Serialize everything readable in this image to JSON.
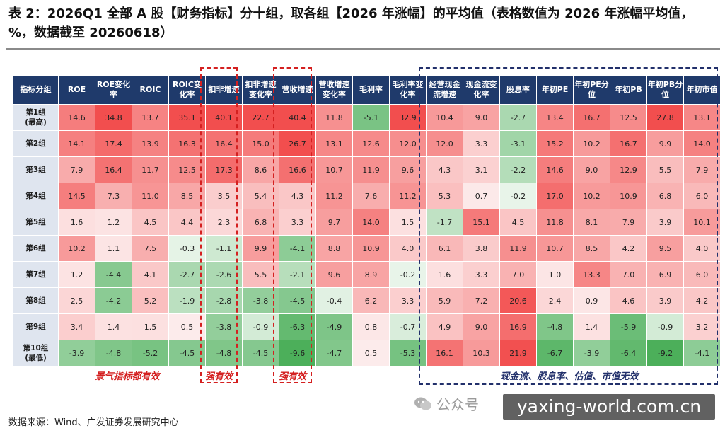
{
  "title": "表 2：2026Q1 全部 A 股【财务指标】分十组，取各组【2026 年涨幅】的平均值（表格数值为 2026 年涨幅平均值，%，数据截至 20260618）",
  "table": {
    "headers": [
      "指标分组",
      "ROE",
      "ROE变化率",
      "ROIC",
      "ROIC变化率",
      "扣非增速",
      "扣非增速变化率",
      "营收增速",
      "营收增速变化率",
      "毛利率",
      "毛利率变化率",
      "经营现金流增速",
      "现金流变化率",
      "股息率",
      "年初PE",
      "年初PE分位",
      "年初PB",
      "年初PB分位",
      "年初市值"
    ],
    "rows": [
      {
        "group": "第1组\n(最高)",
        "values": [
          14.6,
          34.8,
          13.7,
          35.1,
          40.1,
          22.7,
          40.4,
          11.8,
          -5.1,
          32.9,
          10.4,
          9.0,
          -2.7,
          13.4,
          16.7,
          12.5,
          27.8,
          13.1
        ]
      },
      {
        "group": "第2组",
        "values": [
          14.1,
          17.4,
          13.9,
          16.3,
          16.4,
          15.0,
          26.7,
          13.1,
          12.6,
          12.0,
          12.0,
          3.3,
          -3.1,
          15.2,
          10.2,
          16.7,
          9.9,
          14.0
        ]
      },
      {
        "group": "第3组",
        "values": [
          7.9,
          16.4,
          11.7,
          12.5,
          17.3,
          8.6,
          16.6,
          10.7,
          11.9,
          9.6,
          4.3,
          3.1,
          -2.2,
          14.6,
          9.0,
          12.9,
          5.5,
          7.9
        ]
      },
      {
        "group": "第4组",
        "values": [
          14.5,
          7.3,
          11.0,
          8.5,
          3.5,
          5.4,
          4.3,
          11.2,
          7.6,
          11.2,
          5.3,
          0.7,
          -0.2,
          17.0,
          10.2,
          10.9,
          6.8,
          6.0
        ]
      },
      {
        "group": "第5组",
        "values": [
          1.6,
          1.2,
          4.5,
          4.4,
          2.3,
          6.8,
          3.3,
          9.7,
          14.0,
          1.5,
          -1.7,
          15.1,
          4.5,
          11.8,
          8.1,
          7.9,
          3.9,
          10.1
        ]
      },
      {
        "group": "第6组",
        "values": [
          10.2,
          1.1,
          7.5,
          -0.3,
          -1.1,
          9.9,
          -4.1,
          8.8,
          10.9,
          4.0,
          6.1,
          3.8,
          11.9,
          10.7,
          8.5,
          4.2,
          9.5,
          4.0
        ]
      },
      {
        "group": "第7组",
        "values": [
          1.2,
          -4.4,
          4.1,
          -2.7,
          -2.6,
          5.5,
          -2.1,
          9.6,
          8.9,
          -0.2,
          1.6,
          3.3,
          7.0,
          1.0,
          13.3,
          7.0,
          6.9,
          6.0
        ]
      },
      {
        "group": "第8组",
        "values": [
          2.5,
          -4.2,
          5.2,
          -1.9,
          -2.8,
          -3.8,
          -4.5,
          -0.4,
          6.2,
          3.3,
          5.9,
          7.2,
          20.6,
          2.4,
          0.9,
          4.6,
          3.9,
          4.2
        ]
      },
      {
        "group": "第9组",
        "values": [
          3.4,
          1.4,
          1.5,
          0.5,
          -3.8,
          -0.9,
          -6.3,
          -4.9,
          0.8,
          -0.7,
          4.9,
          9.0,
          16.9,
          -4.8,
          1.4,
          -5.9,
          -0.9,
          3.2
        ]
      },
      {
        "group": "第10组\n(最低)",
        "values": [
          -3.9,
          -4.8,
          -5.2,
          -4.5,
          -4.8,
          -4.5,
          -9.6,
          -4.7,
          0.5,
          -5.3,
          16.1,
          10.3,
          21.9,
          -6.7,
          -3.9,
          -6.4,
          -9.2,
          -4.1
        ]
      }
    ]
  },
  "captions": {
    "effective": "景气指标都有效",
    "strong1": "强有效",
    "strong2": "强有效",
    "ineffective": "现金流、股息率、估值、市值无效"
  },
  "source": "数据来源：Wind、广发证券发展研究中心",
  "wechat_label": "公众号",
  "watermark": "yaxing-world.com.cn",
  "colors": {
    "header_bg": "#1f3a6b",
    "group_bg": "#dfe5ef",
    "positive": "#f24e4e",
    "negative": "#4caf5a",
    "box_red": "#d42020",
    "box_navy": "#22306b"
  }
}
